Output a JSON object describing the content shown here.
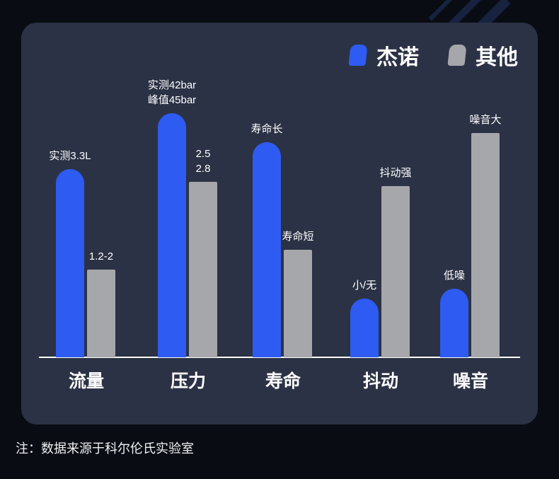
{
  "legend": [
    {
      "label": "杰诺",
      "color": "#2e5bf2"
    },
    {
      "label": "其他",
      "color": "#a6a7ab"
    }
  ],
  "note": "注：数据来源于科尔伦氏实验室",
  "chart_data": {
    "type": "bar",
    "title": "",
    "categories": [
      "流量",
      "压力",
      "寿命",
      "抖动",
      "噪音"
    ],
    "series": [
      {
        "name": "杰诺",
        "color": "#2e5bf2",
        "values": [
          77,
          100,
          88,
          24,
          28
        ],
        "labels": [
          "实测3.3L",
          "实测42bar\n峰值45bar",
          "寿命长",
          "小/无",
          "低噪"
        ]
      },
      {
        "name": "其他",
        "color": "#a6a7ab",
        "values": [
          36,
          72,
          44,
          70,
          92
        ],
        "labels": [
          "1.2-2",
          "2.5\n2.8",
          "寿命短",
          "抖动强",
          "噪音大"
        ]
      }
    ],
    "ylim": [
      0,
      100
    ],
    "grid": false,
    "legend_position": "top-right"
  }
}
